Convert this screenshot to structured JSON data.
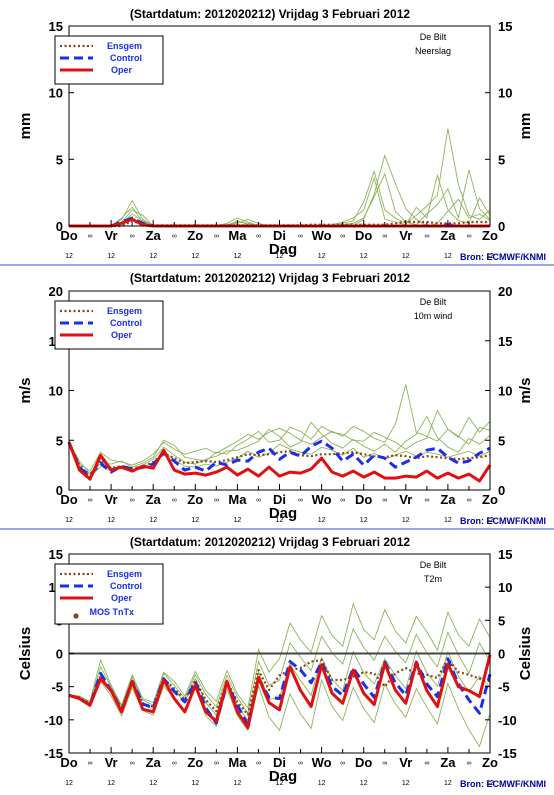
{
  "source": "Bron: ECMWF/KNMI",
  "colors": {
    "ensemble_members": "#8cb45a",
    "ensgem": "#8b4513",
    "control": "#1a2fe8",
    "oper": "#e01010",
    "mos": "#8b4513",
    "separator": "#3a4fd0",
    "legend_text": "#1a2fe8"
  },
  "x_axis": {
    "label": "Dag",
    "day_labels": [
      "Do",
      "Vr",
      "Za",
      "Zo",
      "Ma",
      "Di",
      "Wo",
      "Do",
      "Vr",
      "Za",
      "Zo"
    ],
    "mid_labels": [
      "12",
      "12",
      "12",
      "12",
      "12",
      "12",
      "12",
      "12",
      "12",
      "12",
      "12"
    ]
  },
  "chart_data": [
    {
      "type": "line",
      "title": "(Startdatum: 2012020212)   Vrijdag    3 Februari  2012",
      "location": "De Bilt",
      "variable": "Neerslag",
      "ylabel": "mm",
      "ylim": [
        0,
        15
      ],
      "yticks": [
        0,
        5,
        10,
        15
      ],
      "grid": false,
      "legend_position": "top-left",
      "legend": [
        "Ensgem",
        "Control",
        "Oper"
      ],
      "x_range": [
        0,
        10
      ],
      "series": [
        {
          "name": "Ensgem",
          "style": "dotted",
          "values": [
            0,
            0,
            0,
            0,
            0,
            0,
            0.4,
            0.05,
            0.05,
            0.05,
            0.05,
            0.05,
            0.05,
            0.05,
            0.05,
            0.05,
            0.05,
            0.05,
            0.05,
            0.05,
            0.05,
            0.05,
            0.05,
            0.1,
            0.1,
            0.1,
            0.1,
            0.1,
            0.1,
            0.1,
            0.1,
            0.2,
            0.3,
            0.3,
            0.3,
            0.2,
            0.2,
            0.2,
            0.3,
            0.3,
            0.3
          ]
        },
        {
          "name": "Control",
          "style": "dashed",
          "values": [
            0,
            0,
            0,
            0,
            0,
            0.3,
            0.6,
            0.2,
            0,
            0,
            0,
            0,
            0,
            0,
            0,
            0,
            0,
            0,
            0,
            0,
            0,
            0,
            0,
            0,
            0,
            0,
            0,
            0,
            0,
            0,
            0,
            0,
            0,
            0,
            0,
            0,
            0.1,
            0,
            0,
            0,
            0
          ]
        },
        {
          "name": "Oper",
          "style": "solid",
          "values": [
            0,
            0,
            0,
            0,
            0,
            0.2,
            0.5,
            0.1,
            0,
            0,
            0,
            0,
            0,
            0,
            0,
            0,
            0,
            0,
            0,
            0,
            0,
            0,
            0,
            0,
            0,
            0,
            0,
            0,
            0,
            0,
            0,
            0,
            0,
            0,
            0,
            0,
            0,
            0,
            0,
            0,
            0
          ]
        }
      ],
      "members": [
        [
          0,
          0,
          0,
          0,
          0,
          0.5,
          1.9,
          0.5,
          0,
          0,
          0,
          0,
          0,
          0,
          0,
          0.2,
          0.6,
          0.3,
          0,
          0,
          0,
          0,
          0,
          0,
          0,
          0,
          0,
          0,
          0.5,
          2.4,
          5.3,
          3.2,
          1.3,
          0.5,
          0,
          0.2,
          1.1,
          2.0,
          0.6,
          0.9,
          0.4
        ],
        [
          0,
          0,
          0,
          0,
          0,
          0.3,
          1.2,
          0.8,
          0,
          0,
          0,
          0,
          0,
          0,
          0,
          0.1,
          0.2,
          0.5,
          0.2,
          0,
          0,
          0,
          0,
          0,
          0,
          0,
          0.2,
          0.4,
          1.8,
          4.1,
          1.2,
          0.6,
          0.2,
          0.8,
          1.5,
          2.3,
          7.3,
          3.1,
          0.8,
          0.5,
          1.2
        ],
        [
          0,
          0,
          0,
          0,
          0,
          0.6,
          1.4,
          0.3,
          0,
          0,
          0,
          0,
          0,
          0,
          0,
          0,
          0.4,
          0.1,
          0,
          0,
          0,
          0,
          0,
          0,
          0,
          0.1,
          0.3,
          0.6,
          1.2,
          3.6,
          0.5,
          0.3,
          0.1,
          1.4,
          0.6,
          3.8,
          1.2,
          0.4,
          0.2,
          2.1,
          0.8
        ],
        [
          0,
          0,
          0,
          0,
          0,
          0.2,
          0.9,
          0.4,
          0,
          0,
          0,
          0,
          0,
          0,
          0,
          0.1,
          0.3,
          0.2,
          0,
          0,
          0,
          0,
          0,
          0,
          0,
          0,
          0.1,
          0.2,
          0.6,
          2.2,
          3.9,
          1.1,
          0.3,
          0.1,
          0.9,
          1.6,
          2.8,
          0.6,
          4.2,
          1.3,
          0.5
        ]
      ]
    },
    {
      "type": "line",
      "title": "(Startdatum: 2012020212)   Vrijdag    3 Februari  2012",
      "location": "De Bilt",
      "variable": "10m wind",
      "ylabel": "m/s",
      "ylim": [
        0,
        20
      ],
      "yticks": [
        0,
        5,
        10,
        15,
        20
      ],
      "grid": false,
      "legend_position": "top-left",
      "legend": [
        "Ensgem",
        "Control",
        "Oper"
      ],
      "x_range": [
        0,
        10
      ],
      "series": [
        {
          "name": "Ensgem",
          "style": "dotted",
          "values": [
            4.8,
            2.5,
            1.3,
            3.0,
            2.2,
            2.4,
            2.2,
            2.3,
            2.8,
            3.7,
            3.2,
            2.7,
            2.8,
            2.9,
            2.8,
            3.0,
            3.3,
            3.6,
            3.5,
            3.6,
            3.8,
            3.9,
            3.5,
            3.4,
            3.6,
            3.6,
            3.7,
            3.8,
            3.6,
            3.4,
            3.3,
            3.5,
            3.4,
            3.2,
            3.4,
            3.3,
            3.2,
            3.1,
            3.2,
            3.3,
            3.5
          ]
        },
        {
          "name": "Control",
          "style": "dashed",
          "values": [
            4.8,
            2.2,
            1.5,
            2.7,
            1.8,
            2.4,
            2.1,
            2.3,
            2.6,
            3.7,
            2.9,
            2.0,
            2.3,
            1.9,
            2.8,
            2.5,
            3.0,
            2.9,
            3.8,
            4.2,
            3.1,
            3.8,
            3.4,
            4.4,
            4.9,
            4.2,
            2.9,
            3.6,
            2.5,
            3.5,
            3.2,
            2.3,
            2.8,
            3.3,
            4.0,
            4.2,
            3.3,
            2.7,
            2.9,
            3.7,
            4.2
          ]
        },
        {
          "name": "Oper",
          "style": "solid",
          "values": [
            4.8,
            2.0,
            1.1,
            3.5,
            2.0,
            2.3,
            1.9,
            2.4,
            2.2,
            4.0,
            2.0,
            1.6,
            1.7,
            1.5,
            1.8,
            2.3,
            1.5,
            2.1,
            1.4,
            2.3,
            1.4,
            1.8,
            1.7,
            2.1,
            3.2,
            1.8,
            1.4,
            1.9,
            1.3,
            1.8,
            1.2,
            1.2,
            1.4,
            1.3,
            1.9,
            1.2,
            1.7,
            1.2,
            1.6,
            0.9,
            2.5
          ]
        }
      ],
      "members": [
        [
          4.9,
          2.6,
          1.9,
          3.8,
          3.0,
          2.8,
          2.5,
          2.9,
          3.6,
          4.8,
          4.1,
          3.6,
          3.9,
          4.2,
          3.7,
          4.3,
          4.9,
          5.6,
          5.1,
          5.8,
          6.2,
          5.7,
          5.0,
          4.6,
          5.3,
          5.9,
          5.4,
          6.4,
          5.9,
          5.2,
          4.8,
          6.6,
          10.6,
          5.8,
          5.4,
          4.9,
          6.1,
          5.3,
          7.3,
          5.8,
          6.9
        ],
        [
          4.7,
          2.4,
          1.0,
          3.2,
          2.2,
          2.1,
          2.0,
          2.5,
          3.1,
          4.3,
          3.5,
          2.8,
          2.6,
          3.1,
          3.4,
          3.9,
          4.0,
          4.4,
          4.9,
          6.1,
          5.4,
          4.3,
          4.8,
          6.8,
          5.6,
          4.7,
          4.2,
          5.1,
          4.4,
          3.9,
          4.6,
          3.8,
          4.9,
          5.6,
          7.4,
          5.3,
          4.3,
          3.8,
          5.2,
          4.6,
          5.5
        ],
        [
          4.8,
          2.9,
          1.6,
          2.7,
          2.6,
          2.9,
          2.3,
          2.7,
          3.3,
          5.0,
          4.5,
          3.3,
          3.1,
          2.9,
          3.8,
          3.6,
          4.5,
          5.1,
          5.9,
          4.8,
          5.0,
          6.3,
          5.9,
          5.1,
          6.4,
          5.8,
          5.6,
          5.0,
          4.9,
          5.8,
          5.3,
          4.8,
          4.1,
          4.8,
          5.2,
          8.0,
          6.1,
          5.4,
          4.6,
          6.3,
          6.0
        ],
        [
          4.9,
          2.1,
          1.2,
          2.4,
          1.9,
          2.3,
          2.0,
          2.1,
          2.5,
          3.9,
          3.0,
          2.4,
          2.3,
          2.6,
          2.4,
          2.8,
          3.2,
          3.9,
          3.3,
          3.7,
          4.6,
          4.1,
          3.8,
          3.6,
          4.3,
          4.0,
          3.5,
          4.2,
          3.3,
          3.7,
          3.1,
          3.5,
          3.9,
          3.4,
          3.8,
          3.6,
          3.3,
          3.6,
          3.9,
          3.4,
          3.9
        ]
      ]
    },
    {
      "type": "line",
      "title": "(Startdatum: 2012020212)   Vrijdag    3 Februari  2012",
      "location": "De Bilt",
      "variable": "T2m",
      "ylabel": "Celsius",
      "ylim": [
        -15,
        15
      ],
      "yticks": [
        -15,
        -10,
        -5,
        0,
        5,
        10,
        15
      ],
      "grid": false,
      "zero_line": true,
      "legend_position": "top-left",
      "legend": [
        "Ensgem",
        "Control",
        "Oper",
        "MOS TnTx"
      ],
      "x_range": [
        0,
        10
      ],
      "series": [
        {
          "name": "Ensgem",
          "style": "dotted",
          "values": [
            -6.3,
            -6.6,
            -7.5,
            -3.3,
            -5.7,
            -8.3,
            -4.3,
            -7.5,
            -8.0,
            -3.8,
            -5.3,
            -7.0,
            -4.0,
            -7.0,
            -8.7,
            -4.2,
            -7.3,
            -9.2,
            -2.5,
            -5.5,
            -3.3,
            -2.5,
            -2.2,
            -1.2,
            -1.0,
            -4.0,
            -4.0,
            -3.5,
            -2.8,
            -3.0,
            -5.0,
            -3.0,
            -2.2,
            -3.0,
            -3.2,
            -3.7,
            -0.8,
            -2.8,
            -3.2,
            -3.8,
            -4.2
          ]
        },
        {
          "name": "Control",
          "style": "dashed",
          "values": [
            -6.3,
            -6.8,
            -7.8,
            -3.0,
            -5.6,
            -8.6,
            -4.2,
            -7.6,
            -8.2,
            -3.8,
            -5.7,
            -7.3,
            -4.3,
            -8.2,
            -10.5,
            -4.4,
            -7.8,
            -10.8,
            -3.8,
            -6.6,
            -6.8,
            -1.2,
            -2.5,
            -4.4,
            -1.3,
            -5.0,
            -6.3,
            -2.2,
            -4.6,
            -6.6,
            -1.3,
            -4.4,
            -6.3,
            -1.3,
            -4.6,
            -6.5,
            -0.8,
            -4.6,
            -7.0,
            -9.0,
            -3.1
          ]
        },
        {
          "name": "Oper",
          "style": "solid",
          "values": [
            -6.3,
            -6.8,
            -7.8,
            -3.8,
            -5.6,
            -8.8,
            -4.2,
            -8.4,
            -8.8,
            -4.0,
            -6.8,
            -8.8,
            -4.8,
            -8.8,
            -10.2,
            -4.2,
            -8.8,
            -11.2,
            -3.6,
            -7.4,
            -8.5,
            -2.0,
            -5.6,
            -8.0,
            -1.7,
            -6.0,
            -7.5,
            -2.5,
            -6.0,
            -7.7,
            -1.5,
            -5.5,
            -7.5,
            -1.4,
            -5.6,
            -8.0,
            -1.6,
            -5.0,
            -5.6,
            -6.5,
            -0.2
          ]
        }
      ],
      "members": [
        [
          -6.3,
          -6.5,
          -7.2,
          -1.0,
          -4.8,
          -7.8,
          -3.2,
          -6.8,
          -7.4,
          -2.8,
          -4.2,
          -6.4,
          -2.7,
          -5.6,
          -7.2,
          -2.6,
          -6.1,
          -8.2,
          0.6,
          -2.8,
          -0.8,
          4.6,
          2.0,
          0.2,
          5.7,
          2.7,
          1.1,
          7.5,
          3.6,
          2.1,
          6.6,
          3.4,
          1.6,
          5.6,
          3.3,
          0.5,
          6.2,
          2.8,
          1.1,
          5.2,
          2.4
        ],
        [
          -6.4,
          -7.0,
          -8.0,
          -4.2,
          -6.4,
          -9.4,
          -5.2,
          -8.6,
          -9.3,
          -4.9,
          -6.8,
          -8.9,
          -5.2,
          -9.4,
          -11.0,
          -5.3,
          -9.4,
          -11.6,
          -4.9,
          -9.6,
          -11.6,
          -6.1,
          -9.1,
          -11.3,
          -4.0,
          -8.0,
          -10.1,
          -5.1,
          -8.3,
          -10.4,
          -4.6,
          -7.6,
          -9.6,
          -5.3,
          -8.1,
          -10.6,
          -4.5,
          -8.3,
          -11.5,
          -14.0,
          -9.0
        ],
        [
          -6.2,
          -6.4,
          -7.4,
          -2.0,
          -5.0,
          -8.0,
          -3.6,
          -7.0,
          -7.8,
          -3.0,
          -4.8,
          -6.8,
          -3.2,
          -6.2,
          -8.0,
          -3.3,
          -6.6,
          -9.0,
          -1.2,
          -4.8,
          -4.0,
          1.6,
          -0.6,
          -2.6,
          2.6,
          0.1,
          -1.6,
          3.7,
          0.9,
          -1.0,
          2.6,
          0.3,
          -1.4,
          2.9,
          0.1,
          -2.0,
          3.2,
          -0.2,
          -3.0,
          1.6,
          -1.2
        ],
        [
          -6.3,
          -6.7,
          -7.6,
          -3.6,
          -5.9,
          -8.5,
          -4.4,
          -7.8,
          -8.2,
          -4.1,
          -5.6,
          -7.3,
          -3.8,
          -7.4,
          -9.3,
          -4.0,
          -7.9,
          -10.1,
          -2.8,
          -6.9,
          -6.6,
          -1.6,
          -4.1,
          -6.3,
          -0.6,
          -3.9,
          -5.6,
          0.3,
          -2.9,
          -4.6,
          -0.8,
          -3.3,
          -5.3,
          0.4,
          -2.9,
          -4.9,
          0.2,
          -3.4,
          -5.8,
          -3.4,
          -5.0
        ]
      ],
      "mos_points": []
    }
  ]
}
